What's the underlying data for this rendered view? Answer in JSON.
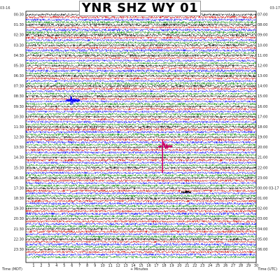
{
  "header": {
    "title": "YNR SHZ WY 01",
    "left_date": "03-16",
    "right_date": "03-17"
  },
  "chart_data": {
    "type": "line",
    "title": "YNR SHZ WY 01",
    "xlabel": "+ Minutes",
    "left_axis_label": "Time (MDT)",
    "right_axis_label": "Time (UTC)",
    "x_ticks": [
      "1",
      "2",
      "3",
      "4",
      "5",
      "6",
      "7",
      "8",
      "9",
      "10",
      "11",
      "12",
      "13",
      "14",
      "15",
      "16",
      "17",
      "18",
      "19",
      "20",
      "21",
      "22",
      "23",
      "24",
      "25",
      "26",
      "27",
      "28",
      "29",
      "30"
    ],
    "left_times": [
      "00:30",
      "01:30",
      "02:30",
      "03:30",
      "04:30",
      "05:30",
      "06:30",
      "07:30",
      "08:30",
      "09:30",
      "10:30",
      "11:30",
      "12:30",
      "13:30",
      "14:30",
      "15:30",
      "16:30",
      "17:30",
      "18:30",
      "19:30",
      "20:30",
      "21:30",
      "22:30",
      "23:30"
    ],
    "right_times": [
      "07:00",
      "08:00",
      "09:00",
      "10:00",
      "11:00",
      "12:00",
      "13:00",
      "14:00",
      "15:00",
      "16:00",
      "17:00",
      "18:00",
      "19:00",
      "20:00",
      "21:00",
      "22:00",
      "23:00",
      "00:00 03-17",
      "01:00",
      "02:00",
      "03:00",
      "04:00",
      "05:00",
      "06:00"
    ],
    "trace_colors": [
      "#000000",
      "#cc0000",
      "#0000ff",
      "#008800"
    ],
    "traces_per_hour": 4,
    "grid": true,
    "events": [
      {
        "minute": 5.8,
        "hour": 8.4,
        "amplitude": "large",
        "color": "#0000ff"
      },
      {
        "minute": 17.8,
        "hour": 12.9,
        "amplitude": "large",
        "color": "#cc0066"
      },
      {
        "minute": 20.8,
        "hour": 17.4,
        "amplitude": "medium",
        "color": "#000000"
      }
    ]
  }
}
